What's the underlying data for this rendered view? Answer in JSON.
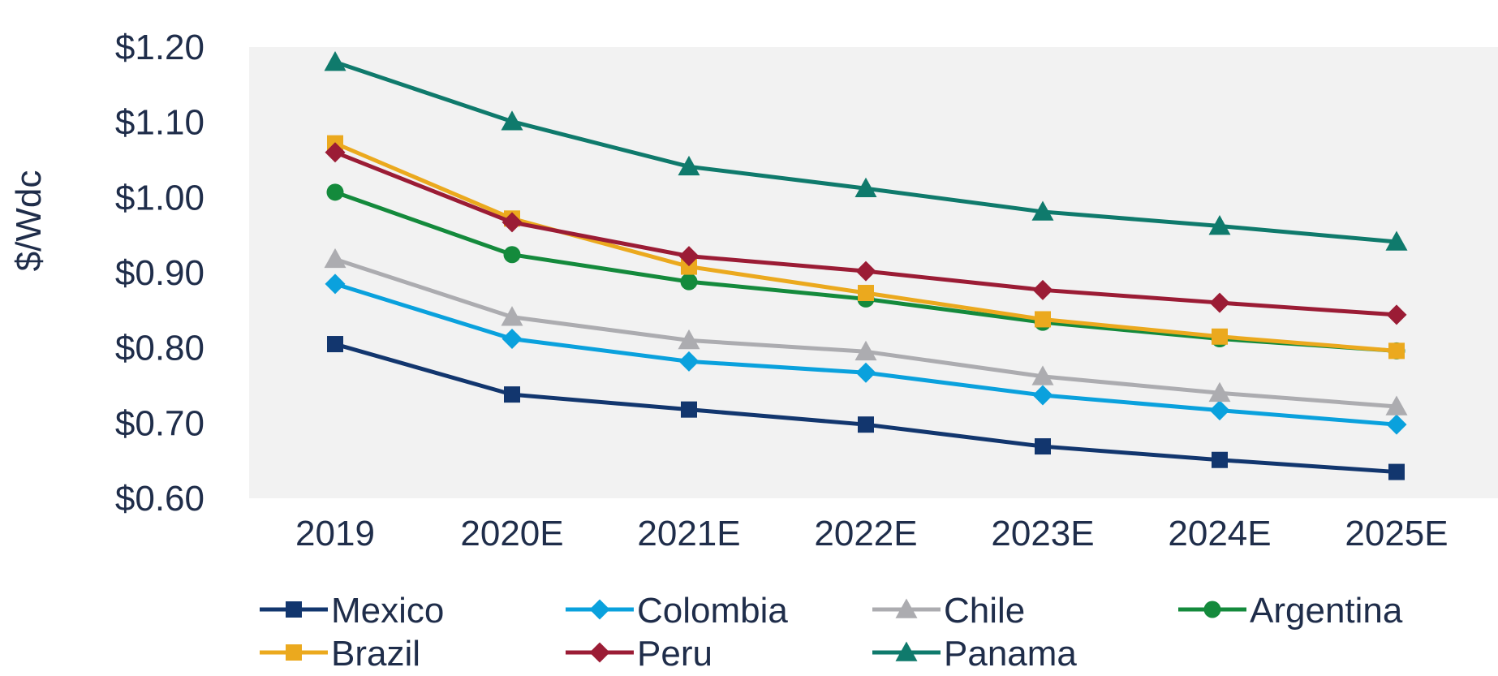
{
  "chart_data": {
    "type": "line",
    "title": "",
    "xlabel": "",
    "ylabel": "$/Wdc",
    "categories": [
      "2019",
      "2020E",
      "2021E",
      "2022E",
      "2023E",
      "2024E",
      "2025E"
    ],
    "ylim": [
      0.6,
      1.2
    ],
    "yticks": [
      0.6,
      0.7,
      0.8,
      0.9,
      1.0,
      1.1,
      1.2
    ],
    "ytick_labels": [
      "$0.60",
      "$0.70",
      "$0.80",
      "$0.90",
      "$1.00",
      "$1.10",
      "$1.20"
    ],
    "grid": false,
    "plot_background": "#f2f2f2",
    "legend_position": "bottom",
    "series": [
      {
        "name": "Mexico",
        "color": "#12366e",
        "marker": "square",
        "values": [
          0.805,
          0.738,
          0.718,
          0.698,
          0.669,
          0.651,
          0.635
        ]
      },
      {
        "name": "Colombia",
        "color": "#0aa1dd",
        "marker": "diamond",
        "values": [
          0.885,
          0.812,
          0.782,
          0.767,
          0.737,
          0.717,
          0.698
        ]
      },
      {
        "name": "Chile",
        "color": "#acacb0",
        "marker": "triangle",
        "values": [
          0.918,
          0.841,
          0.81,
          0.795,
          0.762,
          0.74,
          0.722
        ]
      },
      {
        "name": "Argentina",
        "color": "#148a3c",
        "marker": "circle",
        "values": [
          1.007,
          0.924,
          0.888,
          0.865,
          0.834,
          0.812,
          0.796
        ]
      },
      {
        "name": "Brazil",
        "color": "#eba91e",
        "marker": "square",
        "values": [
          1.072,
          0.972,
          0.908,
          0.873,
          0.838,
          0.815,
          0.796
        ]
      },
      {
        "name": "Peru",
        "color": "#9b1c35",
        "marker": "diamond",
        "values": [
          1.06,
          0.967,
          0.922,
          0.902,
          0.877,
          0.86,
          0.844
        ]
      },
      {
        "name": "Panama",
        "color": "#0f7a6c",
        "marker": "triangle",
        "values": [
          1.18,
          1.101,
          1.041,
          1.012,
          0.981,
          0.962,
          0.941
        ]
      }
    ]
  }
}
